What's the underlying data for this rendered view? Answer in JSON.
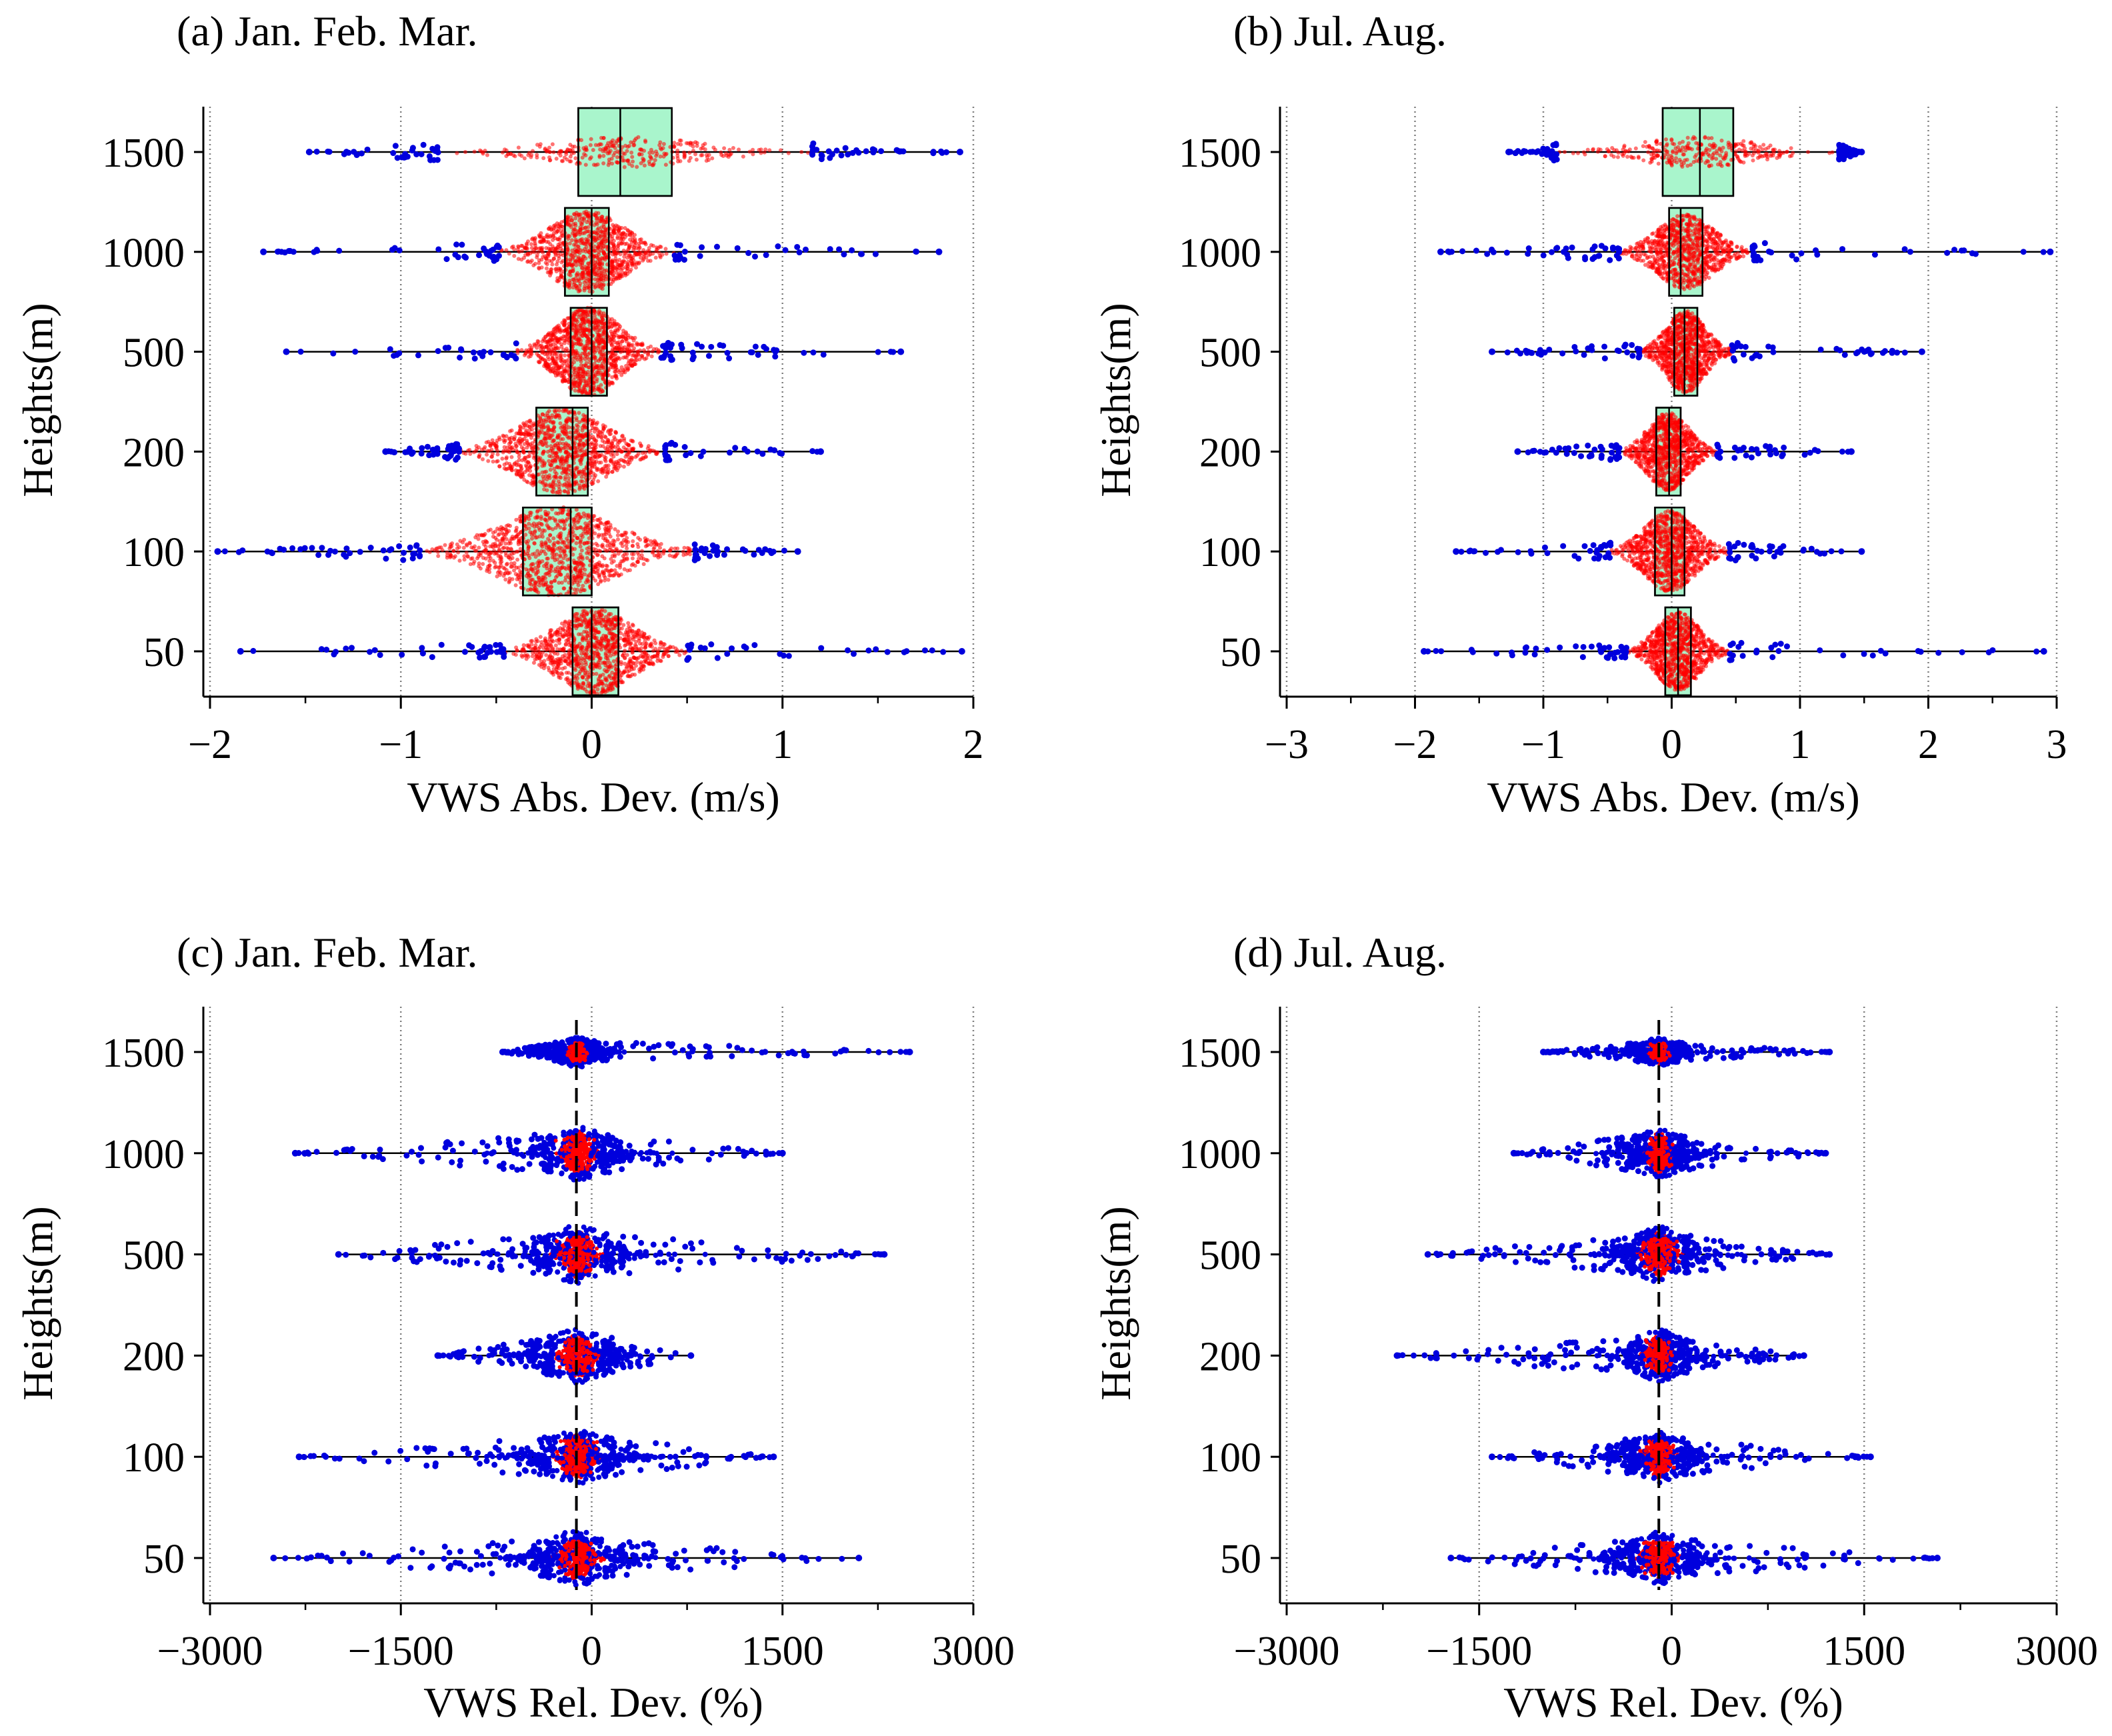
{
  "colors": {
    "box_fill": "#a9f5cc",
    "inner_points": "#ff0000",
    "outer_points": "#0000dd",
    "axis": "#000000",
    "grid": "#7f7f7f"
  },
  "chart_data": [
    {
      "id": "a",
      "type": "boxplot",
      "title": "(a) Jan. Feb. Mar.",
      "xlabel": "VWS Abs. Dev. (m/s)",
      "ylabel": "Heights(m)",
      "xlim": [
        -2.0,
        2.0
      ],
      "xticks": [
        -2,
        -1,
        0,
        1,
        2
      ],
      "xtick_labels": [
        "−2",
        "−1",
        "0",
        "1",
        "2"
      ],
      "grid": "vertical dotted",
      "categories": [
        "1500",
        "1000",
        "500",
        "200",
        "100",
        "50"
      ],
      "series": [
        {
          "height": "1500",
          "min": -1.48,
          "q1": -0.07,
          "median": 0.15,
          "q3": 0.42,
          "max": 1.93,
          "spread": 0.12
        },
        {
          "height": "1000",
          "min": -1.72,
          "q1": -0.14,
          "median": 0.0,
          "q3": 0.09,
          "max": 1.82,
          "spread": 0.85
        },
        {
          "height": "500",
          "min": -1.6,
          "q1": -0.11,
          "median": 0.0,
          "q3": 0.08,
          "max": 1.62,
          "spread": 0.95
        },
        {
          "height": "200",
          "min": -1.08,
          "q1": -0.29,
          "median": -0.1,
          "q3": -0.02,
          "max": 1.2,
          "spread": 0.9
        },
        {
          "height": "100",
          "min": -1.96,
          "q1": -0.36,
          "median": -0.11,
          "q3": 0.0,
          "max": 1.08,
          "spread": 0.95
        },
        {
          "height": "50",
          "min": -1.84,
          "q1": -0.1,
          "median": 0.0,
          "q3": 0.14,
          "max": 1.94,
          "spread": 0.9
        }
      ]
    },
    {
      "id": "b",
      "type": "boxplot",
      "title": "(b) Jul. Aug.",
      "xlabel": "VWS Abs. Dev. (m/s)",
      "ylabel": "Heights(m)",
      "xlim": [
        -3.0,
        3.0
      ],
      "xticks": [
        -3,
        -2,
        -1,
        0,
        1,
        2,
        3
      ],
      "xtick_labels": [
        "−3",
        "−2",
        "−1",
        "0",
        "1",
        "2",
        "3"
      ],
      "grid": "vertical dotted",
      "categories": [
        "1500",
        "1000",
        "500",
        "200",
        "100",
        "50"
      ],
      "series": [
        {
          "height": "1500",
          "min": -1.27,
          "q1": -0.07,
          "median": 0.22,
          "q3": 0.48,
          "max": 1.48,
          "spread": 0.12
        },
        {
          "height": "1000",
          "min": -1.8,
          "q1": -0.02,
          "median": 0.07,
          "q3": 0.24,
          "max": 2.95,
          "spread": 0.75
        },
        {
          "height": "500",
          "min": -1.4,
          "q1": 0.02,
          "median": 0.1,
          "q3": 0.2,
          "max": 1.95,
          "spread": 0.85
        },
        {
          "height": "200",
          "min": -1.2,
          "q1": -0.12,
          "median": -0.02,
          "q3": 0.07,
          "max": 1.4,
          "spread": 0.8
        },
        {
          "height": "100",
          "min": -1.68,
          "q1": -0.13,
          "median": 0.0,
          "q3": 0.1,
          "max": 1.48,
          "spread": 0.85
        },
        {
          "height": "50",
          "min": -1.93,
          "q1": -0.05,
          "median": 0.05,
          "q3": 0.15,
          "max": 2.9,
          "spread": 0.8
        }
      ]
    },
    {
      "id": "c",
      "type": "boxplot",
      "title": "(c) Jan. Feb. Mar.",
      "xlabel": "VWS Rel. Dev. (%)",
      "ylabel": "Heights(m)",
      "xlim": [
        -3000,
        3000
      ],
      "xticks": [
        -3000,
        -1500,
        0,
        1500,
        3000
      ],
      "xtick_labels": [
        "−3000",
        "−1500",
        "0",
        "1500",
        "3000"
      ],
      "grid": "vertical dotted",
      "dashed_line_x": -120,
      "categories": [
        "1500",
        "1000",
        "500",
        "200",
        "100",
        "50"
      ],
      "series": [
        {
          "height": "1500",
          "min": -700,
          "q1": -140,
          "median": -110,
          "q3": -80,
          "max": 2500,
          "spread": 0.15
        },
        {
          "height": "1000",
          "min": -2330,
          "q1": -160,
          "median": -110,
          "q3": -60,
          "max": 1500,
          "spread": 0.55
        },
        {
          "height": "500",
          "min": -1990,
          "q1": -160,
          "median": -110,
          "q3": -50,
          "max": 2300,
          "spread": 0.6
        },
        {
          "height": "200",
          "min": -1210,
          "q1": -160,
          "median": -110,
          "q3": -60,
          "max": 780,
          "spread": 0.55
        },
        {
          "height": "100",
          "min": -2300,
          "q1": -170,
          "median": -110,
          "q3": -60,
          "max": 1430,
          "spread": 0.55
        },
        {
          "height": "50",
          "min": -2500,
          "q1": -170,
          "median": -110,
          "q3": -60,
          "max": 2100,
          "spread": 0.55
        }
      ]
    },
    {
      "id": "d",
      "type": "boxplot",
      "title": "(d) Jul. Aug.",
      "xlabel": "VWS Rel. Dev. (%)",
      "ylabel": "Heights(m)",
      "xlim": [
        -3000,
        3000
      ],
      "xticks": [
        -3000,
        -1500,
        0,
        1500,
        3000
      ],
      "xtick_labels": [
        "−3000",
        "−1500",
        "0",
        "1500",
        "3000"
      ],
      "grid": "vertical dotted",
      "dashed_line_x": -100,
      "categories": [
        "1500",
        "1000",
        "500",
        "200",
        "100",
        "50"
      ],
      "series": [
        {
          "height": "1500",
          "min": -1000,
          "q1": -130,
          "median": -100,
          "q3": -70,
          "max": 1230,
          "spread": 0.12
        },
        {
          "height": "1000",
          "min": -1230,
          "q1": -140,
          "median": -100,
          "q3": -60,
          "max": 1200,
          "spread": 0.5
        },
        {
          "height": "500",
          "min": -1900,
          "q1": -150,
          "median": -100,
          "q3": -50,
          "max": 1230,
          "spread": 0.55
        },
        {
          "height": "200",
          "min": -2140,
          "q1": -140,
          "median": -100,
          "q3": -60,
          "max": 1030,
          "spread": 0.5
        },
        {
          "height": "100",
          "min": -1400,
          "q1": -150,
          "median": -100,
          "q3": -60,
          "max": 1550,
          "spread": 0.5
        },
        {
          "height": "50",
          "min": -1720,
          "q1": -150,
          "median": -100,
          "q3": -50,
          "max": 2070,
          "spread": 0.5
        }
      ]
    }
  ]
}
